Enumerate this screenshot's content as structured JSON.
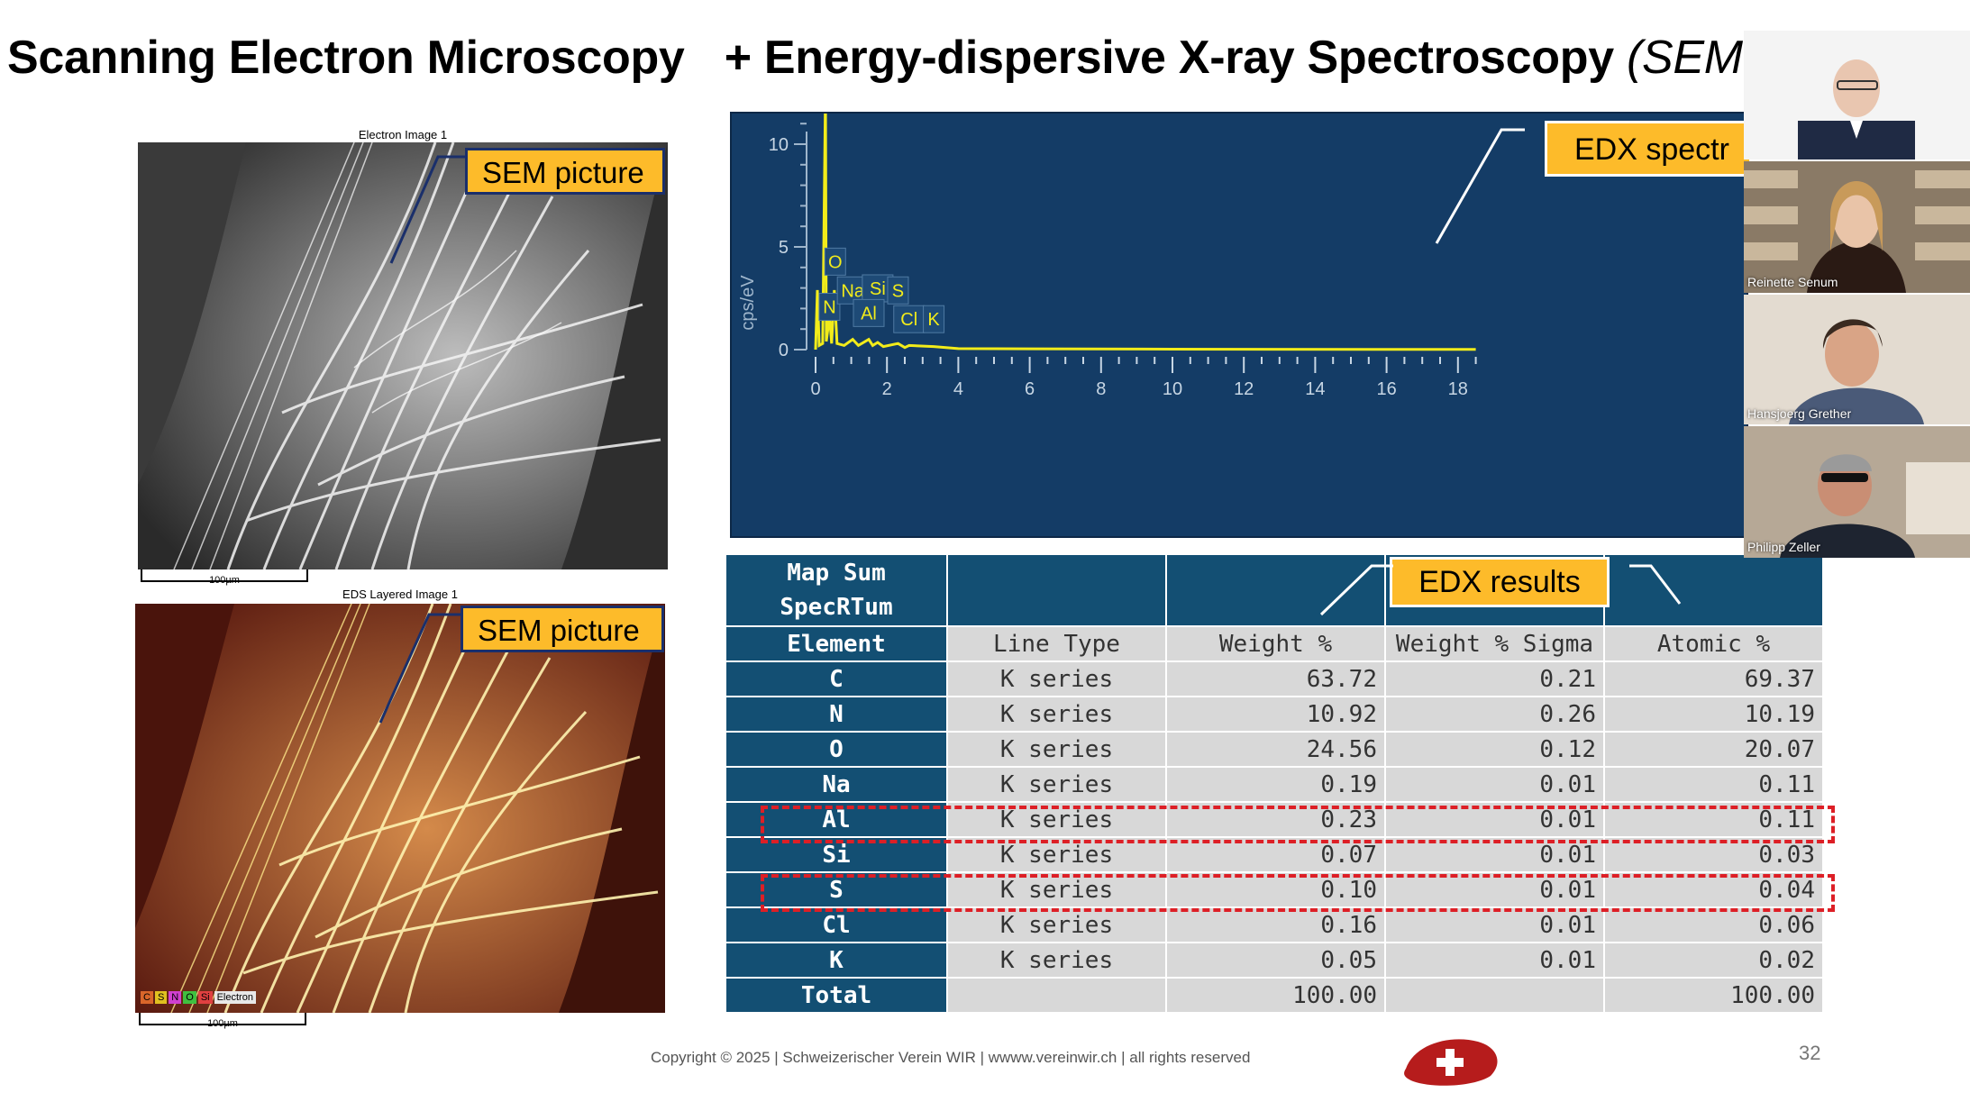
{
  "slide": {
    "title_main": "Scanning Electron Microscopy",
    "title_plus": "+ Energy-dispersive X-ray Spectroscopy",
    "title_abbr": "(SEM",
    "electron_caption": "Electron Image 1",
    "eds_caption": "EDS Layered Image 1",
    "sem_label_1": "SEM picture",
    "sem_label_2": "SEM picture",
    "scale_1": "100µm",
    "scale_2": "100µm",
    "eds_legend": [
      "C",
      "S",
      "N",
      "O",
      "Si"
    ],
    "eds_legend_electron": "Electron",
    "edx_spectrum_label": "EDX spectr",
    "edx_results_label": "EDX results",
    "footer": "Copyright © 2025 | Schweizerischer Verein WIR | wwww.vereinwir.ch | all rights reserved",
    "page_number": "32"
  },
  "spectrum": {
    "ylabel": "cps/eV",
    "x_ticks": [
      "0",
      "2",
      "4",
      "6",
      "8",
      "10",
      "12",
      "14",
      "16",
      "18"
    ],
    "y_ticks": [
      "0",
      "5",
      "10"
    ],
    "peaks": [
      "C",
      "O",
      "N",
      "Na",
      "Si",
      "S",
      "Al",
      "Cl",
      "K"
    ],
    "colors": {
      "background": "#143c66",
      "trace": "#f2ec1a"
    }
  },
  "table": {
    "title": "Map Sum SpecRTum",
    "columns": [
      "Element",
      "Line Type",
      "Weight %",
      "Weight % Sigma",
      "Atomic %"
    ],
    "rows": [
      [
        "C",
        "K series",
        "63.72",
        "0.21",
        "69.37"
      ],
      [
        "N",
        "K series",
        "10.92",
        "0.26",
        "10.19"
      ],
      [
        "O",
        "K series",
        "24.56",
        "0.12",
        "20.07"
      ],
      [
        "Na",
        "K series",
        "0.19",
        "0.01",
        "0.11"
      ],
      [
        "Al",
        "K series",
        "0.23",
        "0.01",
        "0.11"
      ],
      [
        "Si",
        "K series",
        "0.07",
        "0.01",
        "0.03"
      ],
      [
        "S",
        "K series",
        "0.10",
        "0.01",
        "0.04"
      ],
      [
        "Cl",
        "K series",
        "0.16",
        "0.01",
        "0.06"
      ],
      [
        "K",
        "K series",
        "0.05",
        "0.01",
        "0.02"
      ]
    ],
    "total": [
      "Total",
      "",
      "100.00",
      "",
      "100.00"
    ],
    "highlighted": [
      "Al",
      "S"
    ]
  },
  "participants": [
    {
      "name": ""
    },
    {
      "name": "Reinette Senum"
    },
    {
      "name": "Hansjoerg Grether"
    },
    {
      "name": "Philipp Zeller"
    }
  ]
}
